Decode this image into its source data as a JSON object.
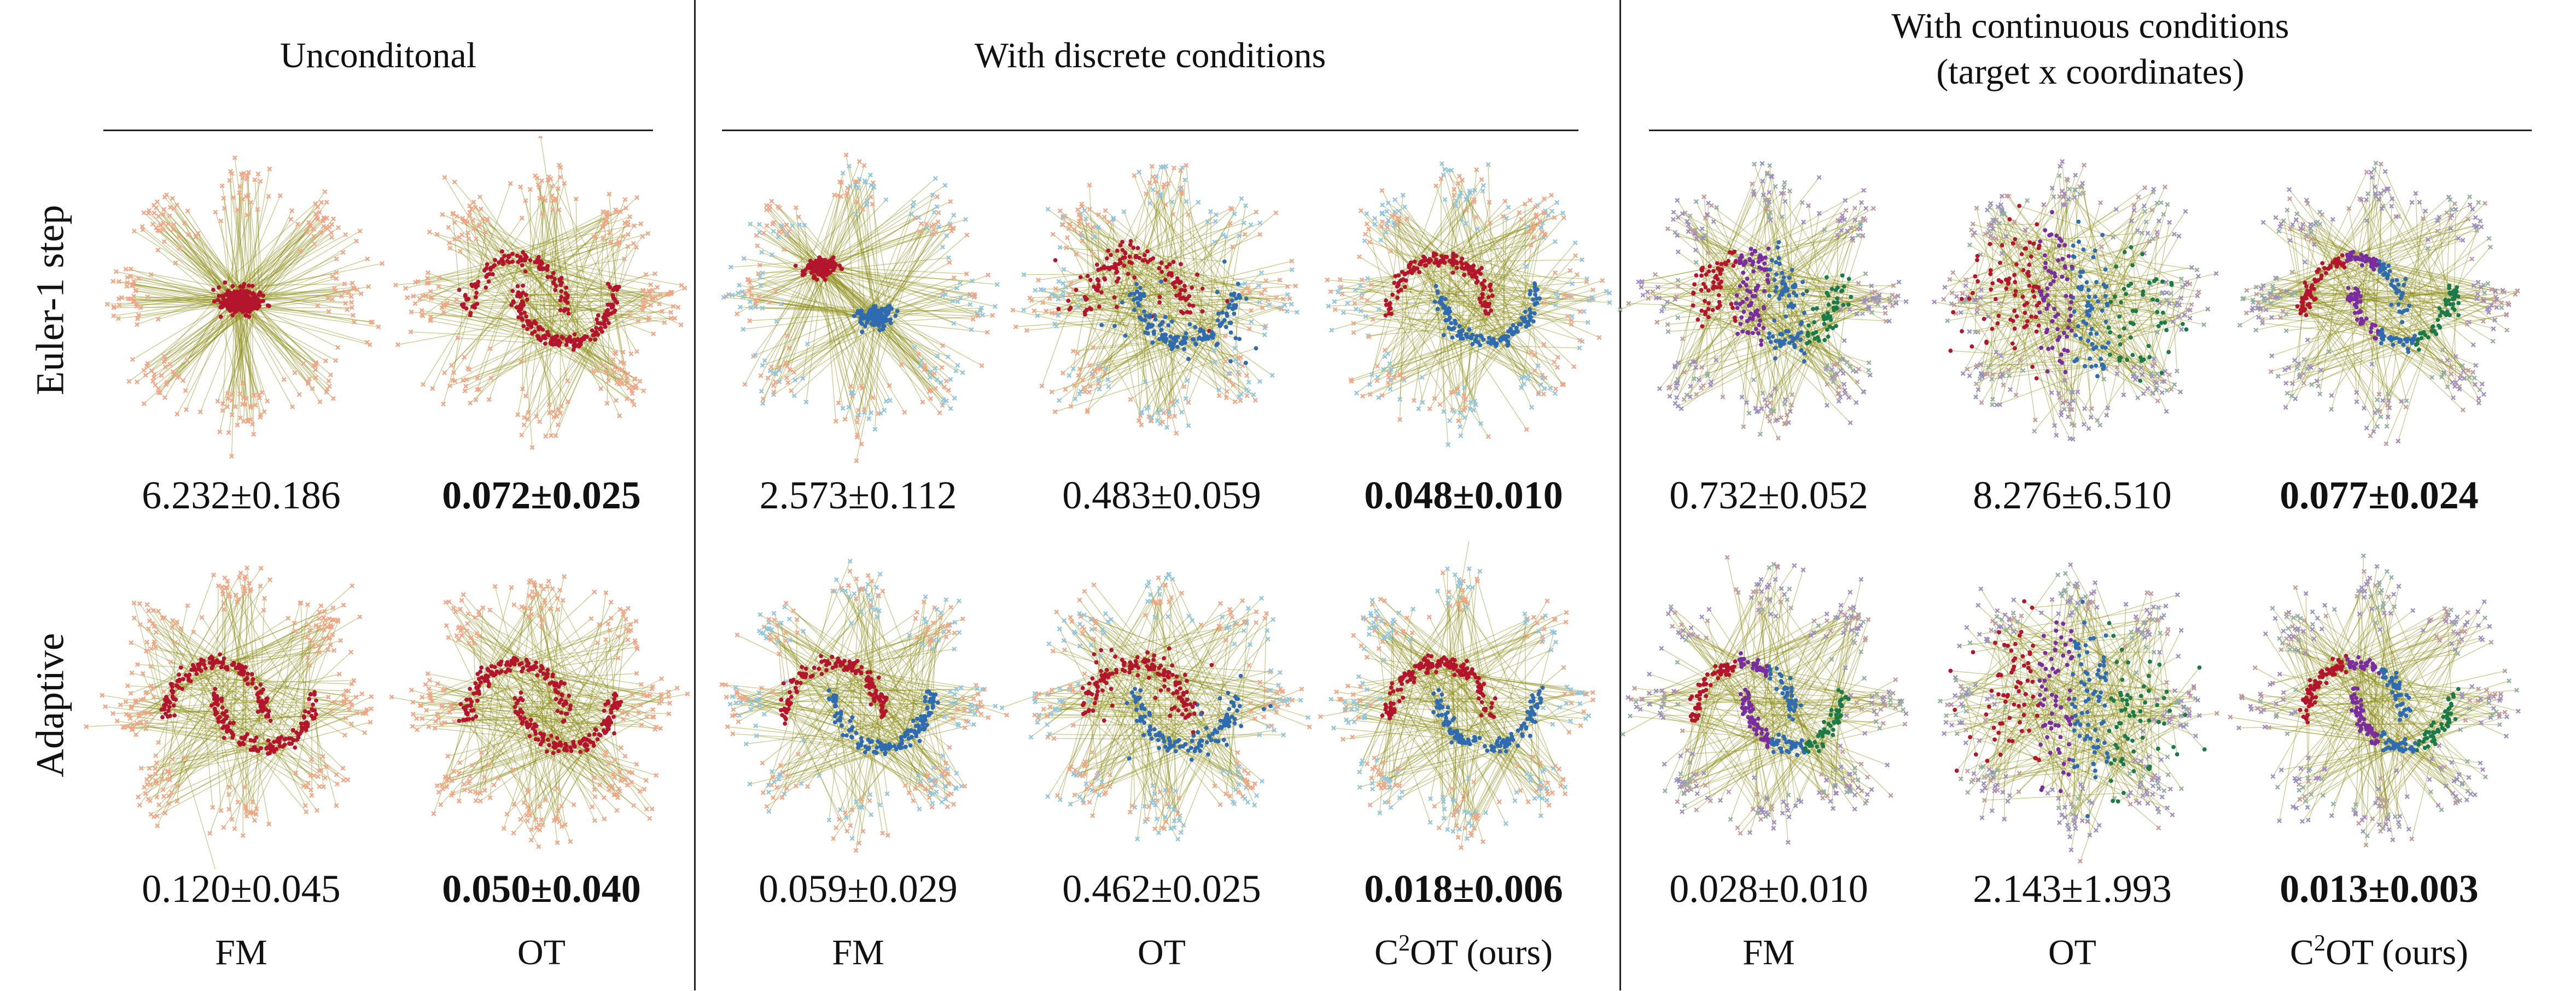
{
  "groups": [
    {
      "title": "Unconditonal",
      "subtitle": ""
    },
    {
      "title": "With discrete conditions",
      "subtitle": ""
    },
    {
      "title": "With continuous conditions",
      "subtitle": "(target x coordinates)"
    }
  ],
  "rows": [
    "Euler-1 step",
    "Adaptive"
  ],
  "columns": [
    {
      "group": 0,
      "label": "FM",
      "sup": ""
    },
    {
      "group": 0,
      "label": "OT",
      "sup": ""
    },
    {
      "group": 1,
      "label": "FM",
      "sup": ""
    },
    {
      "group": 1,
      "label": "OT",
      "sup": ""
    },
    {
      "group": 1,
      "label": "C",
      "sup": "2",
      "suffix": "OT (ours)"
    },
    {
      "group": 2,
      "label": "FM",
      "sup": ""
    },
    {
      "group": 2,
      "label": "OT",
      "sup": ""
    },
    {
      "group": 2,
      "label": "C",
      "sup": "2",
      "suffix": "OT (ours)"
    }
  ],
  "values": [
    [
      {
        "text": "6.232±0.186",
        "bold": false
      },
      {
        "text": "0.072±0.025",
        "bold": true
      },
      {
        "text": "2.573±0.112",
        "bold": false
      },
      {
        "text": "0.483±0.059",
        "bold": false
      },
      {
        "text": "0.048±0.010",
        "bold": true
      },
      {
        "text": "0.732±0.052",
        "bold": false
      },
      {
        "text": "8.276±6.510",
        "bold": false
      },
      {
        "text": "0.077±0.024",
        "bold": true
      }
    ],
    [
      {
        "text": "0.120±0.045",
        "bold": false
      },
      {
        "text": "0.050±0.040",
        "bold": true
      },
      {
        "text": "0.059±0.029",
        "bold": false
      },
      {
        "text": "0.462±0.025",
        "bold": false
      },
      {
        "text": "0.018±0.006",
        "bold": true
      },
      {
        "text": "0.028±0.010",
        "bold": false
      },
      {
        "text": "2.143±1.993",
        "bold": false
      },
      {
        "text": "0.013±0.003",
        "bold": true
      }
    ]
  ],
  "colors": {
    "line": "#8a8a12",
    "source_uncond": "#f2a584",
    "source_discrete_b": "#8fc6de",
    "target_red": "#b3152c",
    "target_blue": "#2e6bb0",
    "target_purple": "#7a2d9e",
    "target_green": "#1c7a48"
  }
}
